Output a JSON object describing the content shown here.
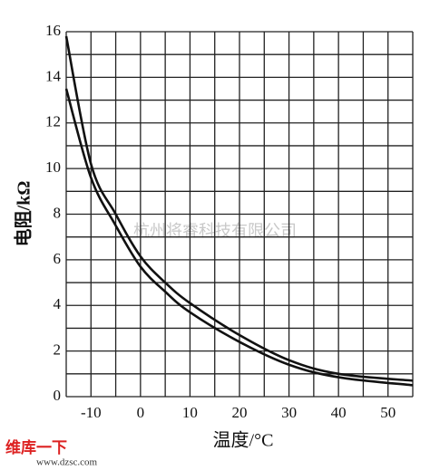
{
  "chart_data": {
    "type": "line",
    "xlabel": "温度/°C",
    "ylabel": "电阻/kΩ",
    "x": [
      -15,
      -10,
      -5,
      0,
      5,
      10,
      20,
      30,
      40,
      55
    ],
    "series": [
      {
        "color": "#111111",
        "values": [
          15.8,
          10.2,
          8.0,
          6.15,
          5.0,
          4.1,
          2.7,
          1.6,
          1.0,
          0.7
        ]
      },
      {
        "color": "#111111",
        "values": [
          13.5,
          9.6,
          7.5,
          5.7,
          4.6,
          3.7,
          2.4,
          1.4,
          0.85,
          0.5
        ]
      }
    ],
    "xlim": [
      -15,
      55
    ],
    "ylim": [
      0,
      16
    ],
    "xticks": [
      -10,
      0,
      10,
      20,
      30,
      40,
      50
    ],
    "yticks": [
      0,
      2,
      4,
      6,
      8,
      10,
      12,
      14,
      16
    ],
    "xgrid": [
      -15,
      -10,
      -5,
      0,
      5,
      10,
      15,
      20,
      25,
      30,
      35,
      40,
      45,
      50,
      55
    ],
    "ygrid": [
      0,
      1,
      2,
      3,
      4,
      5,
      6,
      7,
      8,
      9,
      10,
      11,
      12,
      13,
      14,
      15,
      16
    ],
    "grid": true,
    "watermark": "杭州将睿科技有限公司",
    "logo": "维库一下",
    "logo_url": "www.dzsc.com"
  }
}
